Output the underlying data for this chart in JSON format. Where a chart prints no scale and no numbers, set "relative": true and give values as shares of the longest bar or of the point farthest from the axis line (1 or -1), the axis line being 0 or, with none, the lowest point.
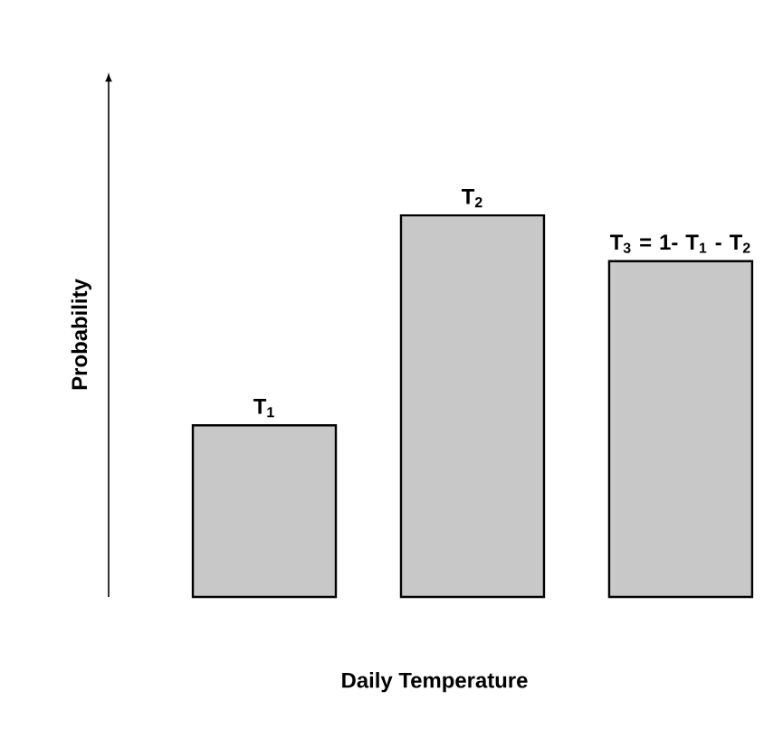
{
  "chart_data": {
    "type": "bar",
    "xlabel": "Daily Temperature",
    "ylabel": "Probability",
    "relative": true,
    "categories": [
      null,
      null,
      null
    ],
    "values": [
      0.45,
      1,
      0.88
    ],
    "annotations": [
      {
        "text": "T$_{1}$",
        "y": 0.45
      },
      {
        "text": "T$_{2}$",
        "y": 1
      },
      {
        "text": "T$_{3}$ = 1- T$_{1}$ - T$_{2}$",
        "y": 0.88
      }
    ],
    "color": "#c8c8c8"
  }
}
